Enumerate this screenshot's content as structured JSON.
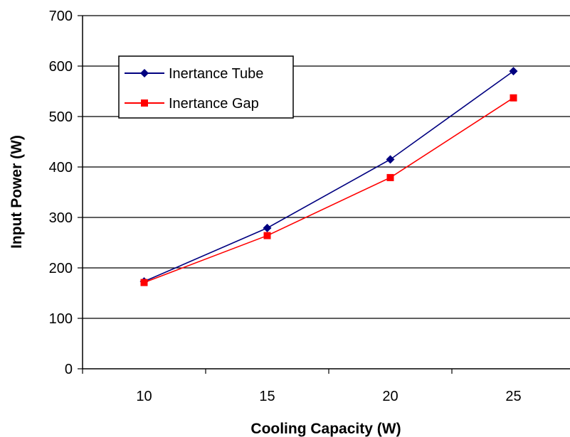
{
  "chart_data": {
    "type": "line",
    "title": "",
    "xlabel": "Cooling Capacity (W)",
    "ylabel": "Input Power (W)",
    "categories": [
      "10",
      "15",
      "20",
      "25"
    ],
    "ylim": [
      0,
      700
    ],
    "yticks": [
      "0",
      "100",
      "200",
      "300",
      "400",
      "500",
      "600",
      "700"
    ],
    "grid": "horizontal",
    "legend_position": "top-left",
    "series": [
      {
        "name": "Inertance Tube",
        "values": [
          173,
          279,
          415,
          590
        ],
        "color": "#000080",
        "marker": "diamond"
      },
      {
        "name": "Inertance Gap",
        "values": [
          171,
          264,
          379,
          537
        ],
        "color": "#ff0000",
        "marker": "square"
      }
    ]
  }
}
